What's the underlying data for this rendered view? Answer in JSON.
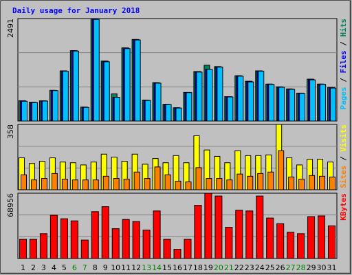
{
  "title": "Daily usage for January 2018",
  "legend_separator": " / ",
  "chart_data": [
    {
      "type": "bar",
      "ylim": [
        0,
        2491
      ],
      "series": [
        {
          "name": "Hits",
          "color": "#00805c",
          "values": [
            491,
            458,
            491,
            746,
            1220,
            1711,
            339,
            2491,
            1457,
            661,
            1779,
            1983,
            508,
            932,
            407,
            322,
            695,
            1203,
            1356,
            1322,
            593,
            1101,
            966,
            1220,
            898,
            830,
            780,
            678,
            1017,
            898,
            813
          ]
        },
        {
          "name": "Files",
          "color": "#0000ff",
          "values": [
            491,
            458,
            491,
            746,
            1220,
            1711,
            339,
            2491,
            1457,
            576,
            1779,
            1983,
            508,
            932,
            407,
            322,
            695,
            1203,
            1254,
            1322,
            593,
            1101,
            966,
            1220,
            898,
            830,
            780,
            678,
            1017,
            898,
            813
          ]
        },
        {
          "name": "Pages",
          "color": "#00c0ff",
          "values": [
            480,
            450,
            485,
            740,
            1210,
            1700,
            330,
            2470,
            1440,
            576,
            1760,
            1970,
            500,
            920,
            400,
            315,
            690,
            1190,
            1254,
            1310,
            585,
            1090,
            950,
            1210,
            890,
            820,
            770,
            670,
            1000,
            890,
            800
          ]
        }
      ]
    },
    {
      "type": "bar",
      "ylim": [
        0,
        358
      ],
      "series": [
        {
          "name": "Visits",
          "color": "#ffff00",
          "values": [
            175,
            144,
            156,
            175,
            152,
            148,
            136,
            152,
            195,
            179,
            156,
            195,
            140,
            171,
            148,
            187,
            148,
            296,
            218,
            183,
            148,
            214,
            187,
            187,
            191,
            358,
            175,
            136,
            167,
            167,
            152
          ]
        },
        {
          "name": "Sites",
          "color": "#ff8000",
          "values": [
            82,
            54,
            62,
            89,
            58,
            54,
            54,
            54,
            74,
            62,
            58,
            97,
            62,
            125,
            82,
            47,
            43,
            121,
            62,
            62,
            54,
            86,
            74,
            89,
            97,
            214,
            70,
            58,
            78,
            74,
            70
          ]
        }
      ]
    },
    {
      "type": "bar",
      "ylim": [
        0,
        68956
      ],
      "categories": [
        "1",
        "2",
        "3",
        "4",
        "5",
        "6",
        "7",
        "8",
        "9",
        "10",
        "11",
        "12",
        "13",
        "14",
        "15",
        "16",
        "17",
        "18",
        "19",
        "20",
        "21",
        "22",
        "23",
        "24",
        "25",
        "26",
        "27",
        "28",
        "29",
        "30",
        "31"
      ],
      "category_colors": [
        "#000000",
        "#000000",
        "#000000",
        "#000000",
        "#000000",
        "#008000",
        "#008000",
        "#000000",
        "#000000",
        "#000000",
        "#000000",
        "#000000",
        "#008000",
        "#008000",
        "#000000",
        "#000000",
        "#000000",
        "#000000",
        "#000000",
        "#008000",
        "#008000",
        "#000000",
        "#000000",
        "#000000",
        "#000000",
        "#000000",
        "#008000",
        "#008000",
        "#000000",
        "#000000",
        "#000000"
      ],
      "series": [
        {
          "name": "KBytes",
          "color": "#ff0000",
          "values": [
            20237,
            20237,
            26233,
            45720,
            41972,
            39724,
            19487,
            49467,
            54714,
            31479,
            41222,
            38973,
            29980,
            50217,
            20237,
            9744,
            20237,
            56213,
            68956,
            65958,
            32978,
            50967,
            50217,
            65958,
            42722,
            36726,
            27732,
            26233,
            44221,
            44971,
            34477
          ]
        }
      ]
    }
  ]
}
